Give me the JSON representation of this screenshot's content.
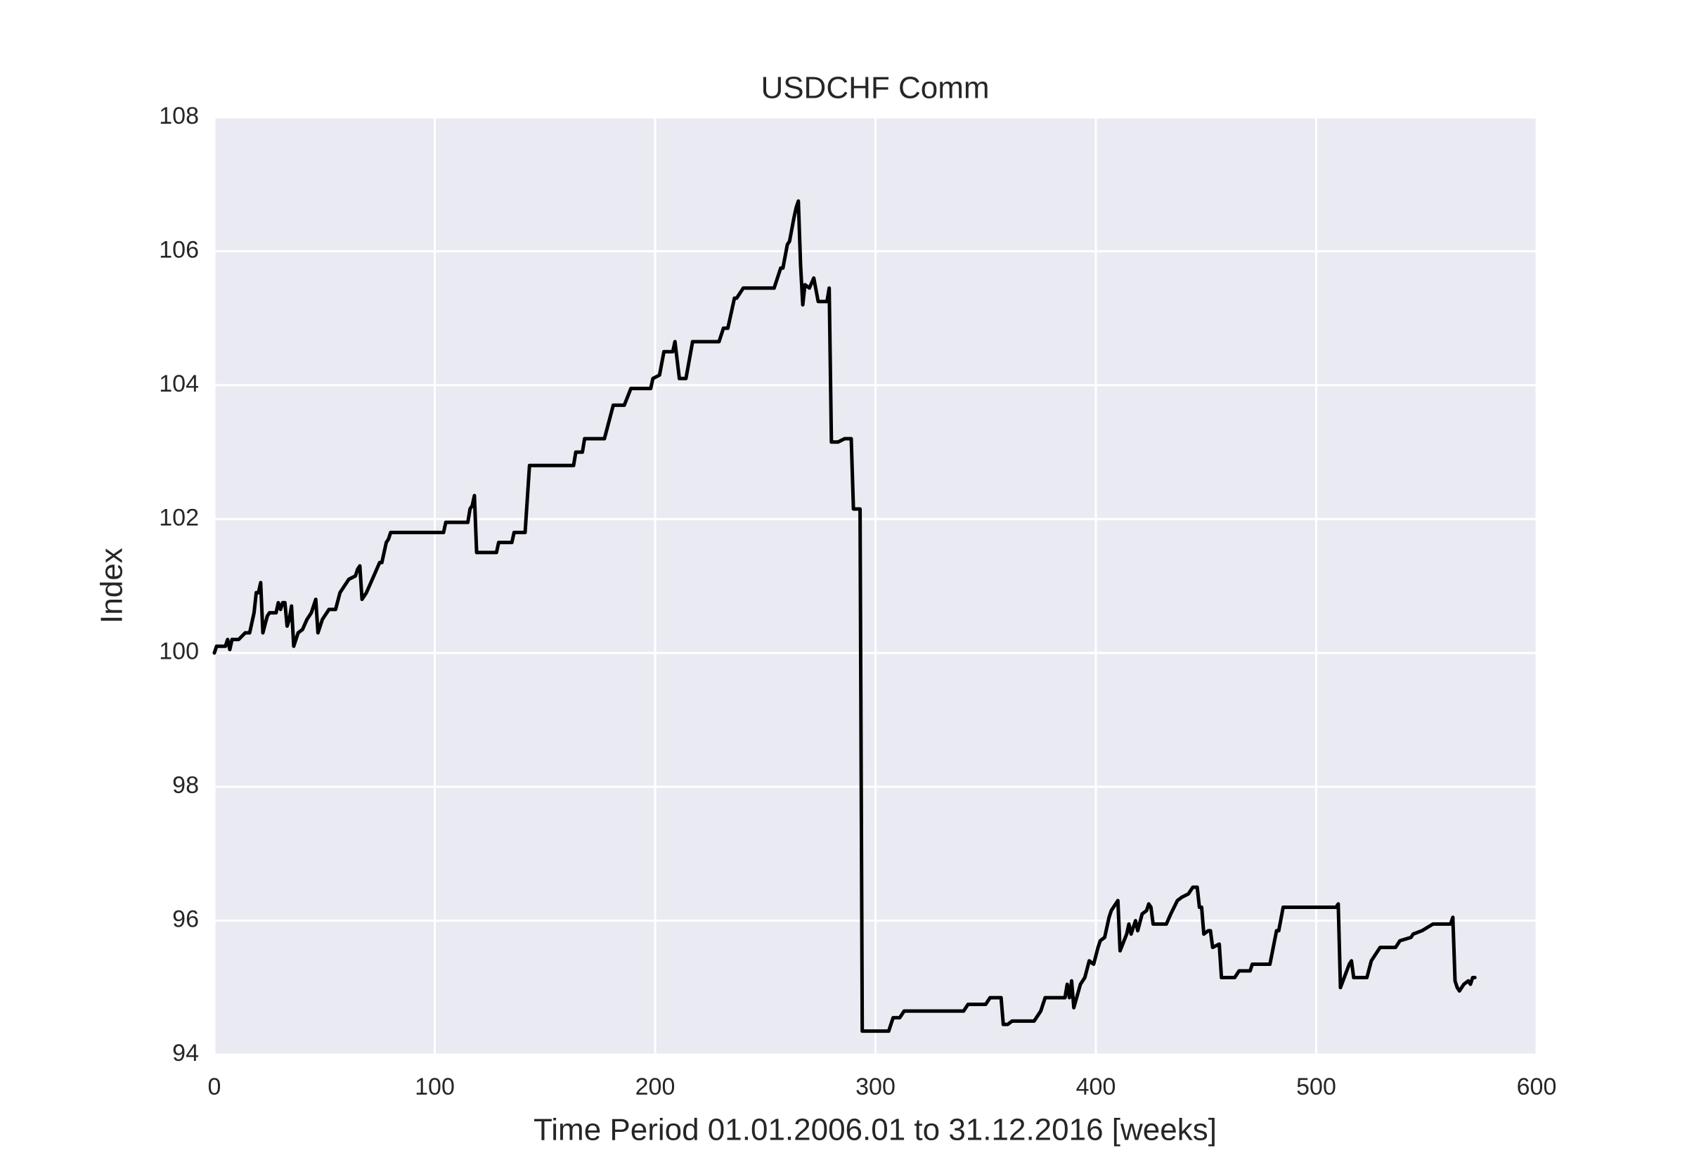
{
  "chart_data": {
    "type": "line",
    "title": "USDCHF Comm",
    "x_label": "Time Period 01.01.2006.01 to 31.12.2016 [weeks]",
    "y_label": "Index",
    "xlim": [
      0,
      600
    ],
    "xticks": [
      0,
      100,
      200,
      300,
      400,
      500,
      600
    ],
    "ylim": [
      94,
      108
    ],
    "yticks": [
      94,
      96,
      98,
      100,
      102,
      104,
      106,
      108
    ],
    "grid": true,
    "background": "#eaeaf2",
    "x": [
      0,
      1,
      5,
      6,
      7,
      8,
      10,
      11,
      14,
      16,
      18,
      19,
      20,
      21,
      22,
      24,
      25,
      28,
      29,
      30,
      31,
      32,
      33,
      34,
      35,
      36,
      38,
      40,
      42,
      44,
      46,
      47,
      49,
      52,
      55,
      57,
      58,
      61,
      64,
      65,
      66,
      67,
      69,
      73,
      75,
      76,
      78,
      79,
      80,
      88,
      91,
      104,
      105,
      111,
      115,
      116,
      117,
      118,
      119,
      128,
      129,
      135,
      136,
      141,
      143,
      163,
      164,
      167,
      168,
      177,
      181,
      186,
      189,
      198,
      199,
      202,
      204,
      208,
      209,
      211,
      214,
      217,
      229,
      231,
      233,
      234,
      236,
      237,
      240,
      254,
      257,
      258,
      260,
      261,
      263,
      264,
      265,
      266,
      267,
      268,
      270,
      272,
      274,
      278,
      279,
      280,
      283,
      286,
      289,
      290,
      293,
      294,
      306,
      308,
      311,
      313,
      340,
      342,
      350,
      352,
      357,
      358,
      360,
      362,
      372,
      375,
      377,
      386,
      387,
      388,
      389,
      390,
      393,
      395,
      397,
      399,
      401,
      402,
      404,
      406,
      407,
      409,
      410,
      411,
      414,
      415,
      416,
      418,
      419,
      421,
      423,
      424,
      425,
      426,
      432,
      434,
      437,
      439,
      442,
      444,
      446,
      447,
      448,
      449,
      451,
      452,
      453,
      456,
      457,
      463,
      465,
      470,
      471,
      479,
      482,
      483,
      485,
      509,
      510,
      511,
      515,
      516,
      517,
      523,
      525,
      527,
      529,
      536,
      538,
      543,
      544,
      548,
      553,
      561,
      562,
      563,
      564,
      565,
      567,
      569,
      570,
      571,
      572
    ],
    "series": [
      {
        "name": "USDCHF Comm",
        "color": "#000000",
        "values": [
          100,
          100.1,
          100.1,
          100.2,
          100.05,
          100.2,
          100.2,
          100.2,
          100.3,
          100.3,
          100.6,
          100.9,
          100.9,
          101.05,
          100.3,
          100.55,
          100.6,
          100.6,
          100.75,
          100.65,
          100.75,
          100.75,
          100.4,
          100.5,
          100.7,
          100.1,
          100.3,
          100.35,
          100.5,
          100.6,
          100.8,
          100.3,
          100.5,
          100.65,
          100.65,
          100.9,
          100.95,
          101.1,
          101.15,
          101.25,
          101.3,
          100.8,
          100.9,
          101.2,
          101.35,
          101.35,
          101.65,
          101.7,
          101.8,
          101.8,
          101.8,
          101.8,
          101.95,
          101.95,
          101.95,
          102.15,
          102.2,
          102.35,
          101.5,
          101.5,
          101.65,
          101.65,
          101.8,
          101.8,
          102.8,
          102.8,
          103.0,
          103.0,
          103.2,
          103.2,
          103.7,
          103.7,
          103.95,
          103.95,
          104.1,
          104.15,
          104.5,
          104.5,
          104.65,
          104.1,
          104.1,
          104.65,
          104.65,
          104.85,
          104.85,
          105.0,
          105.3,
          105.3,
          105.45,
          105.45,
          105.75,
          105.75,
          106.1,
          106.15,
          106.5,
          106.65,
          106.75,
          105.8,
          105.2,
          105.5,
          105.45,
          105.6,
          105.25,
          105.25,
          105.45,
          103.15,
          103.15,
          103.2,
          103.2,
          102.15,
          102.15,
          94.35,
          94.35,
          94.55,
          94.55,
          94.65,
          94.65,
          94.75,
          94.75,
          94.85,
          94.85,
          94.45,
          94.45,
          94.5,
          94.5,
          94.65,
          94.85,
          94.85,
          95.05,
          94.85,
          95.1,
          94.7,
          95.05,
          95.15,
          95.4,
          95.35,
          95.6,
          95.7,
          95.75,
          96.05,
          96.15,
          96.25,
          96.3,
          95.55,
          95.8,
          95.95,
          95.8,
          96.0,
          95.85,
          96.1,
          96.15,
          96.25,
          96.2,
          95.95,
          95.95,
          96.1,
          96.3,
          96.35,
          96.4,
          96.5,
          96.5,
          96.2,
          96.2,
          95.8,
          95.85,
          95.85,
          95.6,
          95.65,
          95.15,
          95.15,
          95.25,
          95.25,
          95.35,
          95.35,
          95.85,
          95.85,
          96.2,
          96.2,
          96.25,
          95.0,
          95.35,
          95.4,
          95.15,
          95.15,
          95.4,
          95.5,
          95.6,
          95.6,
          95.7,
          95.75,
          95.8,
          95.85,
          95.95,
          95.95,
          96.05,
          95.1,
          95.0,
          94.95,
          95.05,
          95.1,
          95.05,
          95.15,
          95.15
        ]
      }
    ]
  }
}
